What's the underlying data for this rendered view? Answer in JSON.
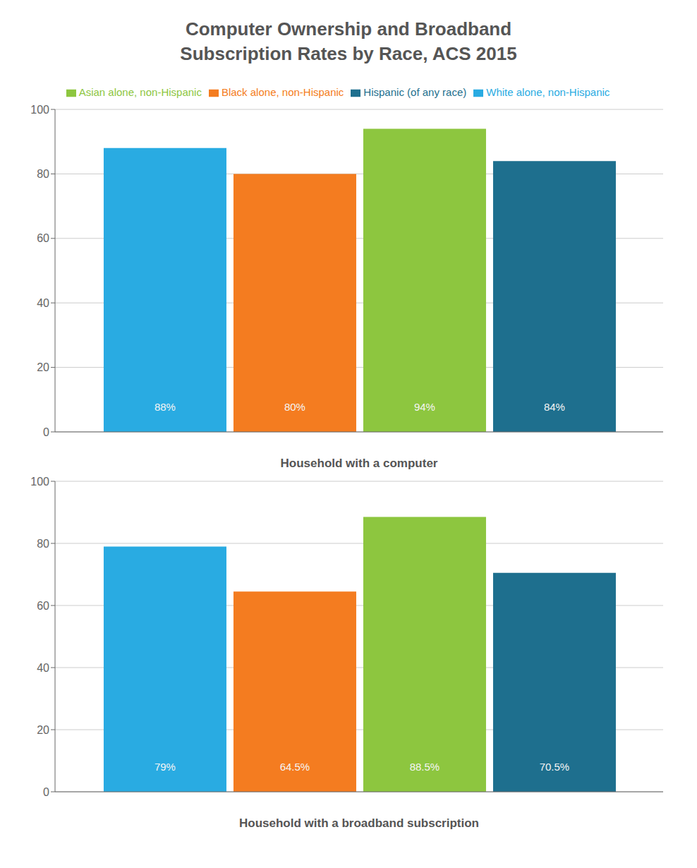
{
  "title": "Computer Ownership and Broadband\nSubscription Rates by Race, ACS 2015",
  "chart_data": [
    {
      "type": "bar",
      "xlabel": "Household with a computer",
      "series": [
        {
          "name": "White alone, non-Hispanic",
          "color": "#29abe2",
          "values": [
            88
          ],
          "value_labels": [
            "88%"
          ]
        },
        {
          "name": "Black alone, non-Hispanic",
          "color": "#f47c20",
          "values": [
            80
          ],
          "value_labels": [
            "80%"
          ]
        },
        {
          "name": "Asian alone, non-Hispanic",
          "color": "#8dc63f",
          "values": [
            94
          ],
          "value_labels": [
            "94%"
          ]
        },
        {
          "name": "Hispanic (of any race)",
          "color": "#1e6f8e",
          "values": [
            84
          ],
          "value_labels": [
            "84%"
          ]
        }
      ],
      "ylim": [
        0,
        100
      ],
      "yticks": [
        0,
        20,
        40,
        60,
        80,
        100
      ],
      "grid": true,
      "legend": "top",
      "data_labels": true,
      "tick_labels": "y"
    },
    {
      "type": "bar",
      "xlabel": "Household with a broadband subscription",
      "series": [
        {
          "name": "White alone, non-Hispanic",
          "color": "#29abe2",
          "values": [
            79
          ],
          "value_labels": [
            "79%"
          ]
        },
        {
          "name": "Black alone, non-Hispanic",
          "color": "#f47c20",
          "values": [
            64.5
          ],
          "value_labels": [
            "64.5%"
          ]
        },
        {
          "name": "Asian alone, non-Hispanic",
          "color": "#8dc63f",
          "values": [
            88.5
          ],
          "value_labels": [
            "88.5%"
          ]
        },
        {
          "name": "Hispanic (of any race)",
          "color": "#1e6f8e",
          "values": [
            70.5
          ],
          "value_labels": [
            "70.5%"
          ]
        }
      ],
      "ylim": [
        0,
        100
      ],
      "yticks": [
        0,
        20,
        40,
        60,
        80,
        100
      ],
      "grid": true,
      "data_labels": true,
      "tick_labels": "y"
    }
  ]
}
